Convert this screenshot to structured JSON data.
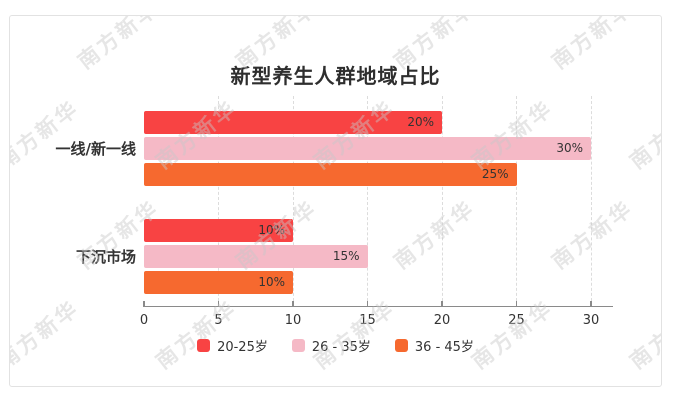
{
  "watermark": {
    "text": "南方新华"
  },
  "chart_data": {
    "type": "bar",
    "orientation": "horizontal",
    "title": "新型养生人群地域占比",
    "categories": [
      "一线/新一线",
      "下沉市场"
    ],
    "series": [
      {
        "name": "20-25岁",
        "color": "#F84343",
        "values": [
          20,
          10
        ]
      },
      {
        "name": "26 - 35岁",
        "color": "#F5B9C6",
        "values": [
          30,
          15
        ]
      },
      {
        "name": "36 - 45岁",
        "color": "#F6692F",
        "values": [
          25,
          10
        ]
      }
    ],
    "data_labels": [
      [
        "20%",
        "30%",
        "25%"
      ],
      [
        "10%",
        "15%",
        "10%"
      ]
    ],
    "xlabel": "",
    "ylabel": "",
    "xlim": [
      0,
      30
    ],
    "x_ticks": [
      0,
      5,
      10,
      15,
      20,
      25,
      30
    ],
    "grid": "dashed-vertical",
    "legend_position": "bottom",
    "axis_color": "#8a8a8a",
    "text_color": "#333333"
  }
}
